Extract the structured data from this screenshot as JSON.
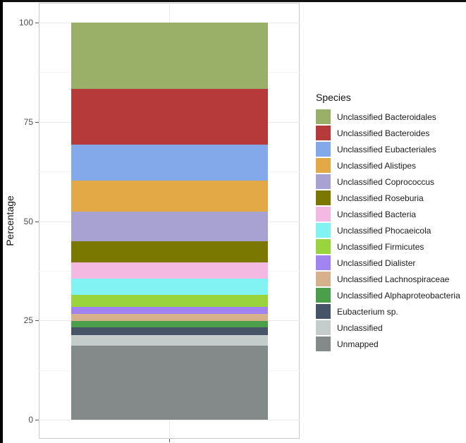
{
  "chart_data": {
    "type": "bar",
    "stacked": true,
    "title": "",
    "xlabel": "",
    "ylabel": "Percentage",
    "ylim": [
      0,
      100
    ],
    "yticks": [
      0,
      25,
      50,
      75,
      100
    ],
    "grid": true,
    "legend_position": "right",
    "legend_title": "Species",
    "categories": [
      ""
    ],
    "series": [
      {
        "name": "Unclassified Bacteroidales",
        "color": "#9aaf67",
        "values": [
          16.7
        ]
      },
      {
        "name": "Unclassified Bacteroides",
        "color": "#b73a3a",
        "values": [
          13.9
        ]
      },
      {
        "name": "Unclassified Eubacteriales",
        "color": "#84a9ea",
        "values": [
          9.2
        ]
      },
      {
        "name": "Unclassified Alistipes",
        "color": "#e3a946",
        "values": [
          7.8
        ]
      },
      {
        "name": "Unclassified Coprococcus",
        "color": "#a7a2d2",
        "values": [
          7.5
        ]
      },
      {
        "name": "Unclassified Roseburia",
        "color": "#7b7800",
        "values": [
          5.3
        ]
      },
      {
        "name": "Unclassified Bacteria",
        "color": "#f3b9e3",
        "values": [
          4.1
        ]
      },
      {
        "name": "Unclassified Phocaeicola",
        "color": "#82f3f3",
        "values": [
          4.1
        ]
      },
      {
        "name": "Unclassified Firmicutes",
        "color": "#9ad43c",
        "values": [
          3.0
        ]
      },
      {
        "name": "Unclassified Dialister",
        "color": "#a184f0",
        "values": [
          1.8
        ]
      },
      {
        "name": "Unclassified Lachnospiraceae",
        "color": "#d6b18c",
        "values": [
          1.8
        ]
      },
      {
        "name": "Unclassified Alphaproteobacteria",
        "color": "#4b9f4b",
        "values": [
          1.6
        ]
      },
      {
        "name": "Eubacterium sp.",
        "color": "#475468",
        "values": [
          1.8
        ]
      },
      {
        "name": "Unclassified",
        "color": "#c4cdcc",
        "values": [
          2.7
        ]
      },
      {
        "name": "Unmapped",
        "color": "#838a89",
        "values": [
          18.8
        ]
      }
    ]
  },
  "axis": {
    "y_title": "Percentage",
    "y_tick_labels": [
      "0",
      "25",
      "50",
      "75",
      "100"
    ]
  },
  "legend": {
    "title": "Species"
  }
}
